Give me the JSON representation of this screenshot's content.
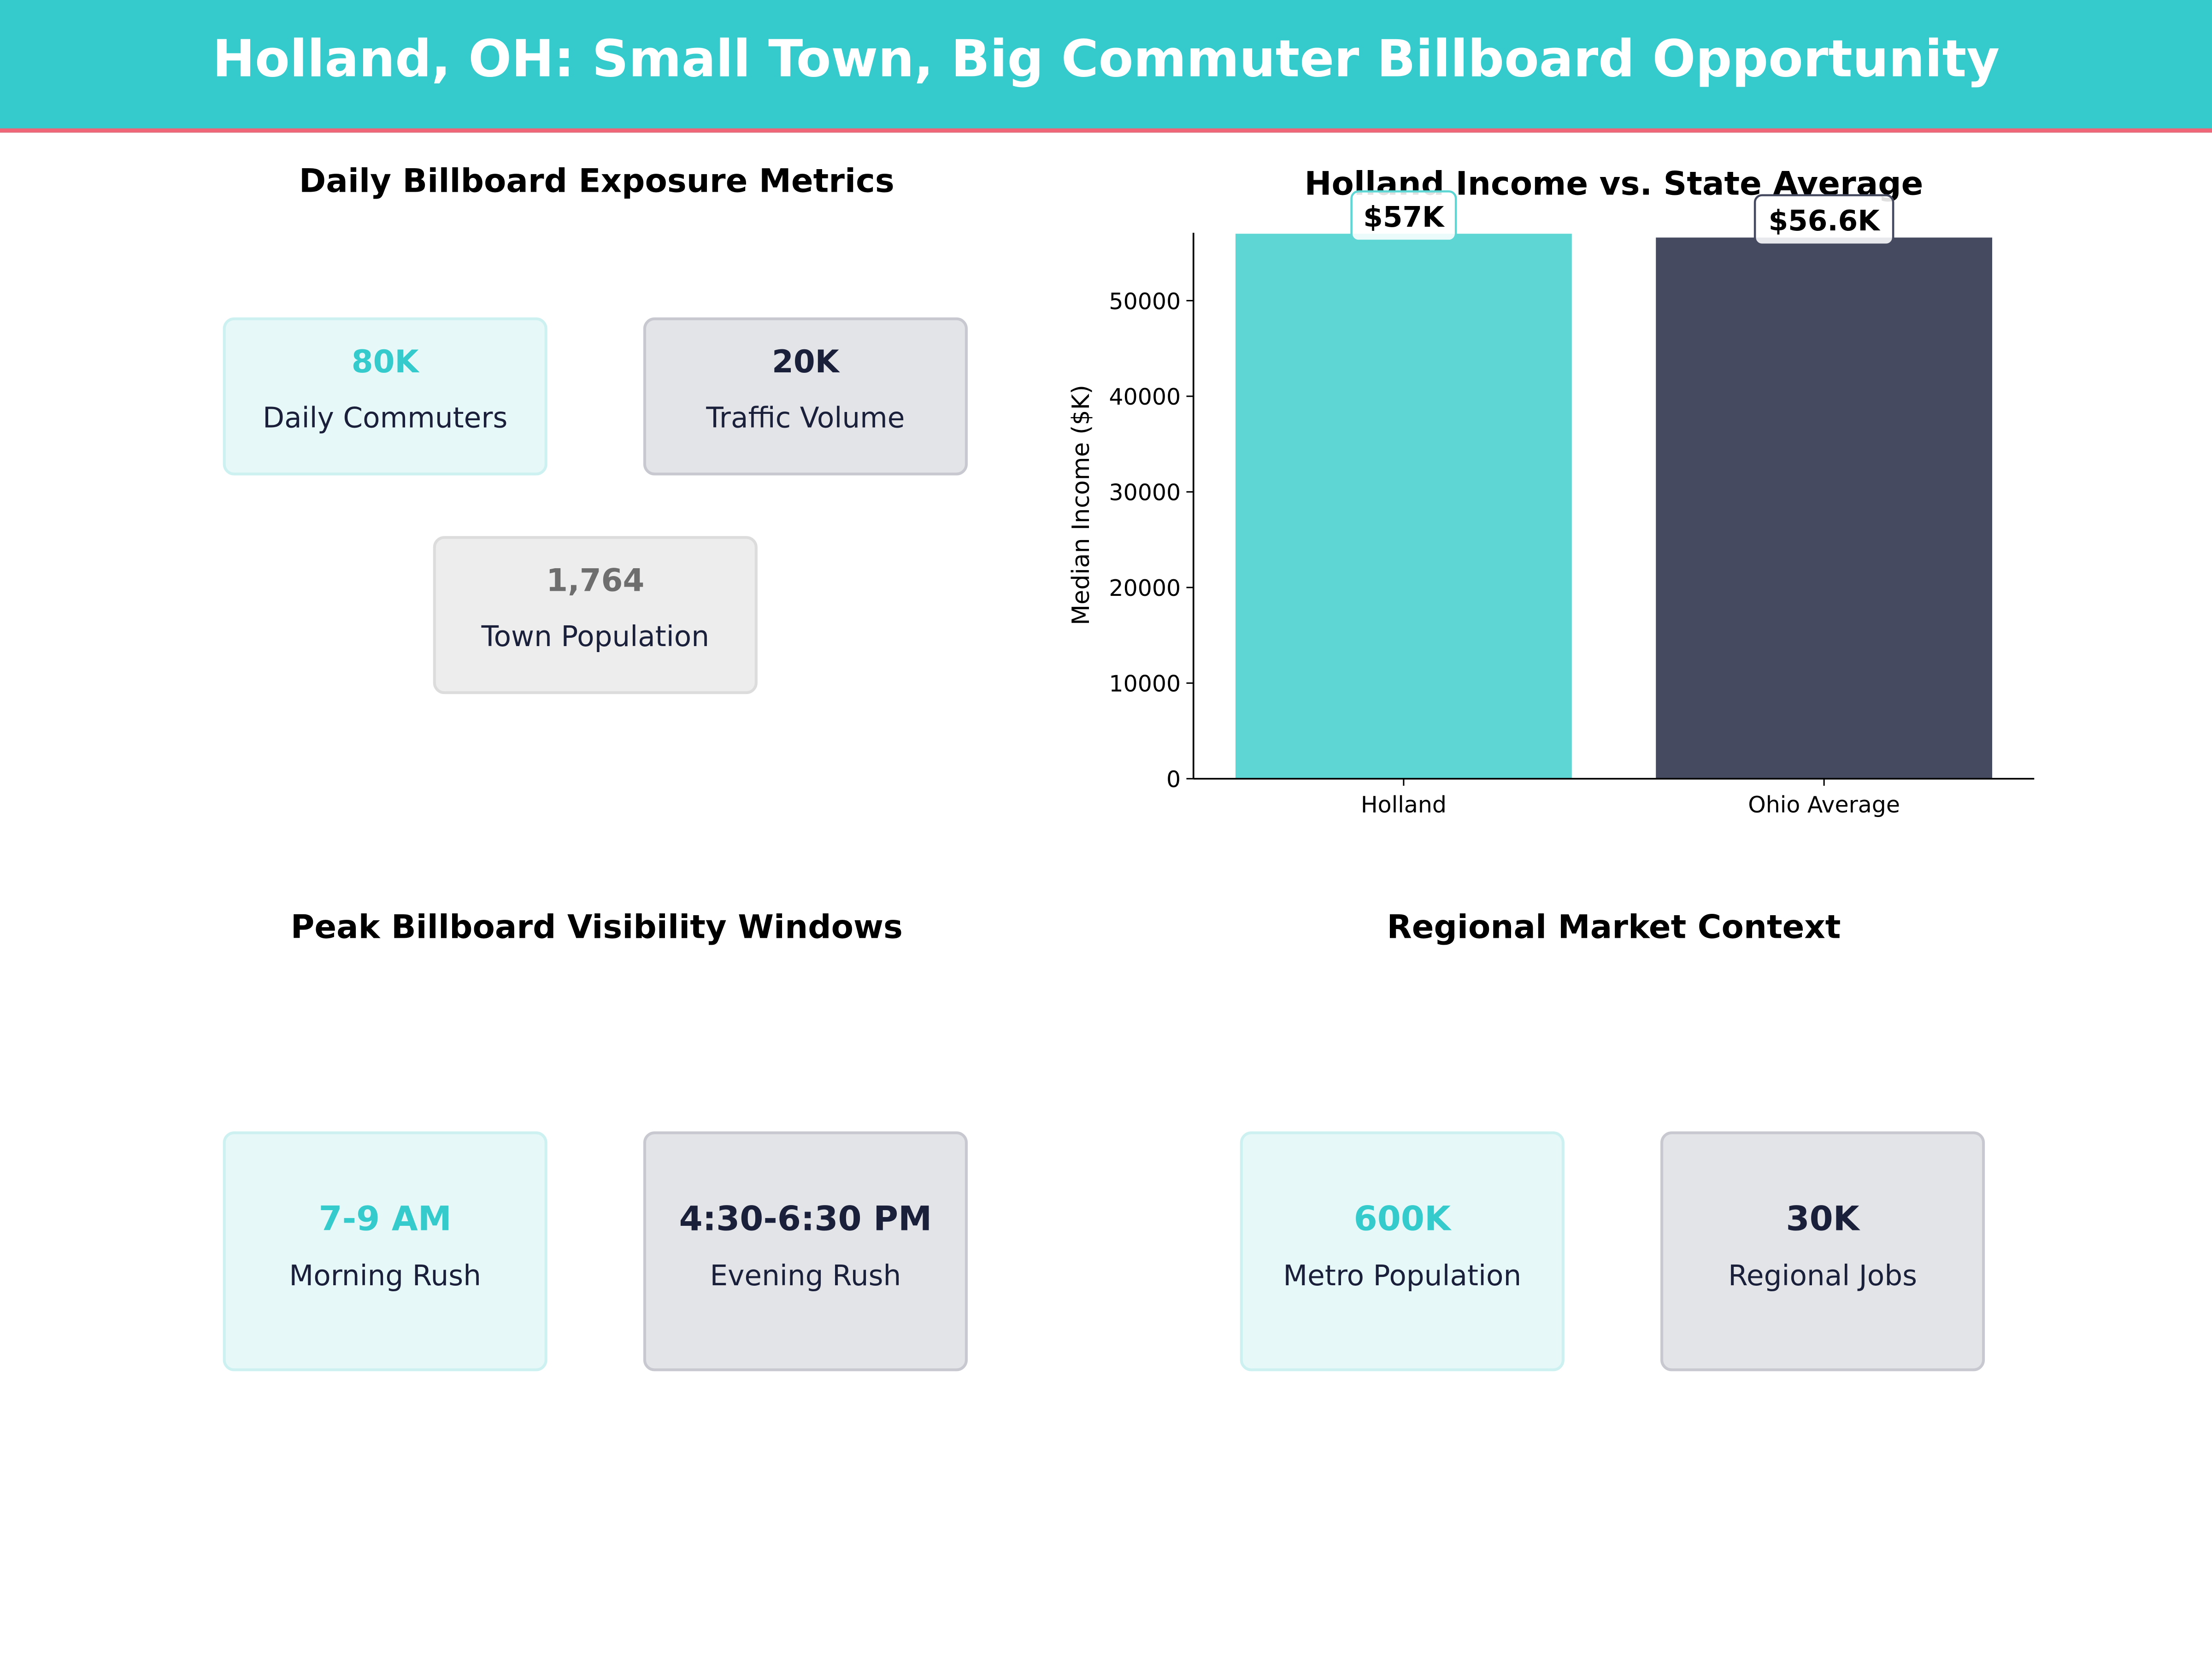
{
  "header": {
    "title": "Holland, OH: Small Town, Big Commuter Billboard Opportunity"
  },
  "exposure": {
    "title": "Daily Billboard Exposure Metrics",
    "cards": [
      {
        "value": "80K",
        "label": "Daily Commuters"
      },
      {
        "value": "20K",
        "label": "Traffic Volume"
      },
      {
        "value": "1,764",
        "label": "Town Population"
      }
    ]
  },
  "visibility": {
    "title": "Peak Billboard Visibility Windows",
    "cards": [
      {
        "value": "7-9 AM",
        "label": "Morning Rush"
      },
      {
        "value": "4:30-6:30 PM",
        "label": "Evening Rush"
      }
    ]
  },
  "regional": {
    "title": "Regional Market Context",
    "cards": [
      {
        "value": "600K",
        "label": "Metro Population"
      },
      {
        "value": "30K",
        "label": "Regional Jobs"
      }
    ]
  },
  "colors": {
    "teal": "#35CBCC",
    "navy": "#454A60",
    "accent": "#EE6677"
  },
  "chart_data": {
    "type": "bar",
    "title": "Holland Income vs. State Average",
    "categories": [
      "Holland",
      "Ohio Average"
    ],
    "values": [
      57000,
      56600
    ],
    "data_labels": [
      "$57K",
      "$56.6K"
    ],
    "bar_colors": [
      "#5DD6D4",
      "#454A60"
    ],
    "xlabel": "",
    "ylabel": "Median Income ($K)",
    "ylim": [
      0,
      57100
    ],
    "yticks": [
      0,
      10000,
      20000,
      30000,
      40000,
      50000
    ],
    "grid": false
  }
}
